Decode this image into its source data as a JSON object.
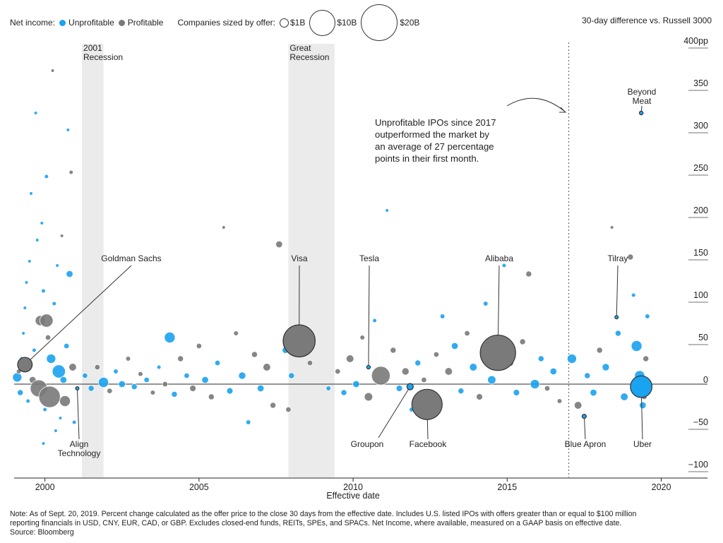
{
  "legend": {
    "net_income_label": "Net income:",
    "unprofitable_label": "Unprofitable",
    "profitable_label": "Profitable",
    "size_label": "Companies sized by offer:",
    "size_1b": "$1B",
    "size_10b": "$10B",
    "size_20b": "$20B",
    "right_title": "30-day difference vs. Russell 3000"
  },
  "callout": {
    "lines": [
      "Unprofitable IPOs since 2017",
      "outperformed the market by",
      "an average of 27 percentage",
      "points in their first month."
    ]
  },
  "notes": {
    "line1": "Note: As of Sept. 20, 2019. Percent change calculated as the offer price to the close 30 days from the effective date. Includes U.S. listed IPOs with offers greater than or equal to $100 million",
    "line2": "reporting financials in USD, CNY, EUR, CAD, or GBP. Excludes closed-end funds, REITs, SPEs, and SPACs. Net Income, where available, measured on a GAAP basis on effective date.",
    "line3": "Source: Bloomberg"
  },
  "chart_data": {
    "type": "scatter",
    "xlabel": "Effective date",
    "ylabel": "30-day difference vs. Russell 3000",
    "xlim": [
      1999.0,
      2021.5
    ],
    "ylim": [
      -110,
      410
    ],
    "x_ticks": [
      2000,
      2005,
      2010,
      2015,
      2020
    ],
    "y_ticks": [
      400,
      350,
      300,
      250,
      200,
      150,
      100,
      50,
      0,
      -50,
      -100
    ],
    "y_tick_labels": [
      "400pp",
      "350",
      "300",
      "250",
      "200",
      "150",
      "100",
      "50",
      "0",
      "−50",
      "−100"
    ],
    "recessions": [
      {
        "label": [
          "2001",
          "Recession"
        ],
        "start": 2001.2,
        "end": 2001.9
      },
      {
        "label": [
          "Great",
          "Recession"
        ],
        "start": 2007.9,
        "end": 2009.4
      }
    ],
    "reference_line_x": 2017.0,
    "colors": {
      "unprofitable": "#1aa3f0",
      "profitable": "#7a7a7a",
      "outline": "#333333",
      "recession": "#ebebeb",
      "zero_line": "#555555"
    },
    "size_scale_billion": {
      "1": 5.5,
      "10": 17,
      "20": 24
    },
    "labeled_points": [
      {
        "name": "Goldman Sachs",
        "x": 1999.35,
        "y": 23,
        "offer_billion": 3.7,
        "status": "profitable"
      },
      {
        "name": "Align Technology",
        "x": 2001.05,
        "y": -5,
        "offer_billion": 0.13,
        "status": "unprofitable"
      },
      {
        "name": "Visa",
        "x": 2008.25,
        "y": 51,
        "offer_billion": 17.9,
        "status": "profitable"
      },
      {
        "name": "Tesla",
        "x": 2010.5,
        "y": 20,
        "offer_billion": 0.23,
        "status": "unprofitable"
      },
      {
        "name": "Groupon",
        "x": 2011.85,
        "y": -3,
        "offer_billion": 0.7,
        "status": "unprofitable"
      },
      {
        "name": "Facebook",
        "x": 2012.4,
        "y": -24,
        "offer_billion": 16.0,
        "status": "profitable"
      },
      {
        "name": "Alibaba",
        "x": 2014.7,
        "y": 37,
        "offer_billion": 21.8,
        "status": "profitable"
      },
      {
        "name": "Blue Apron",
        "x": 2017.5,
        "y": -38,
        "offer_billion": 0.3,
        "status": "unprofitable"
      },
      {
        "name": "Tilray",
        "x": 2018.55,
        "y": 79,
        "offer_billion": 0.15,
        "status": "unprofitable"
      },
      {
        "name": "Beyond Meat",
        "x": 2019.35,
        "y": 320,
        "offer_billion": 0.24,
        "status": "unprofitable"
      },
      {
        "name": "Uber",
        "x": 2019.35,
        "y": -3,
        "offer_billion": 8.1,
        "status": "unprofitable"
      }
    ],
    "points": [
      [
        1999.1,
        8,
        "u",
        1.5
      ],
      [
        1999.15,
        15,
        "p",
        0.4
      ],
      [
        1999.2,
        -10,
        "u",
        0.6
      ],
      [
        1999.25,
        30,
        "u",
        0.3
      ],
      [
        1999.3,
        60,
        "u",
        0.2
      ],
      [
        1999.35,
        90,
        "u",
        0.2
      ],
      [
        1999.4,
        120,
        "u",
        0.2
      ],
      [
        1999.45,
        -20,
        "u",
        0.3
      ],
      [
        1999.5,
        145,
        "u",
        0.2
      ],
      [
        1999.55,
        225,
        "u",
        0.2
      ],
      [
        1999.6,
        5,
        "p",
        0.8
      ],
      [
        1999.65,
        40,
        "u",
        0.3
      ],
      [
        1999.7,
        320,
        "u",
        0.2
      ],
      [
        1999.75,
        170,
        "u",
        0.2
      ],
      [
        1999.8,
        -5,
        "p",
        5.0
      ],
      [
        1999.85,
        75,
        "p",
        1.8
      ],
      [
        1999.9,
        190,
        "u",
        0.2
      ],
      [
        1999.95,
        110,
        "u",
        0.3
      ],
      [
        2000.0,
        -30,
        "u",
        0.3
      ],
      [
        2000.05,
        245,
        "u",
        0.3
      ],
      [
        2000.1,
        55,
        "p",
        0.5
      ],
      [
        2000.15,
        -15,
        "p",
        8.0
      ],
      [
        2000.2,
        30,
        "u",
        1.5
      ],
      [
        2000.25,
        370,
        "p",
        0.2
      ],
      [
        2000.3,
        95,
        "u",
        0.3
      ],
      [
        2000.35,
        -55,
        "u",
        0.2
      ],
      [
        2000.4,
        140,
        "u",
        0.2
      ],
      [
        2000.45,
        15,
        "u",
        3.0
      ],
      [
        2000.5,
        -40,
        "u",
        0.2
      ],
      [
        2000.55,
        175,
        "p",
        0.2
      ],
      [
        2000.6,
        5,
        "u",
        0.8
      ],
      [
        2000.65,
        -20,
        "p",
        2.0
      ],
      [
        2000.7,
        45,
        "u",
        0.5
      ],
      [
        2000.75,
        300,
        "u",
        0.2
      ],
      [
        2000.8,
        130,
        "u",
        0.8
      ],
      [
        2000.85,
        250,
        "p",
        0.3
      ],
      [
        2000.9,
        20,
        "p",
        1.0
      ],
      [
        2000.95,
        -45,
        "u",
        0.3
      ],
      [
        2000.05,
        75,
        "p",
        3.0
      ],
      [
        1999.95,
        -70,
        "u",
        0.2
      ],
      [
        2001.3,
        10,
        "u",
        0.5
      ],
      [
        2001.5,
        -5,
        "u",
        0.6
      ],
      [
        2001.7,
        20,
        "p",
        0.5
      ],
      [
        2001.9,
        2,
        "u",
        1.8
      ],
      [
        2002.1,
        -8,
        "p",
        0.5
      ],
      [
        2002.3,
        15,
        "u",
        0.4
      ],
      [
        2002.5,
        0,
        "u",
        0.8
      ],
      [
        2002.7,
        30,
        "p",
        0.4
      ],
      [
        2002.9,
        -3,
        "u",
        0.6
      ],
      [
        2003.1,
        12,
        "p",
        0.4
      ],
      [
        2003.3,
        5,
        "u",
        0.5
      ],
      [
        2003.5,
        -10,
        "p",
        0.4
      ],
      [
        2003.7,
        20,
        "u",
        0.3
      ],
      [
        2003.9,
        0,
        "p",
        0.5
      ],
      [
        2004.05,
        55,
        "u",
        2.0
      ],
      [
        2004.2,
        -12,
        "u",
        0.6
      ],
      [
        2004.4,
        30,
        "p",
        0.6
      ],
      [
        2004.6,
        10,
        "u",
        0.5
      ],
      [
        2004.8,
        -5,
        "p",
        0.7
      ],
      [
        2005.0,
        45,
        "p",
        0.5
      ],
      [
        2005.2,
        5,
        "u",
        0.8
      ],
      [
        2005.4,
        -15,
        "p",
        0.6
      ],
      [
        2005.6,
        25,
        "u",
        0.5
      ],
      [
        2005.8,
        185,
        "p",
        0.2
      ],
      [
        2006.0,
        -8,
        "u",
        0.7
      ],
      [
        2006.2,
        60,
        "p",
        0.4
      ],
      [
        2006.4,
        10,
        "u",
        0.9
      ],
      [
        2006.6,
        -45,
        "u",
        0.4
      ],
      [
        2006.8,
        35,
        "p",
        0.6
      ],
      [
        2007.0,
        -5,
        "u",
        0.8
      ],
      [
        2007.2,
        20,
        "p",
        1.0
      ],
      [
        2007.4,
        -25,
        "p",
        0.6
      ],
      [
        2007.6,
        165,
        "p",
        0.8
      ],
      [
        2007.8,
        40,
        "u",
        0.7
      ],
      [
        2007.9,
        -30,
        "p",
        0.5
      ],
      [
        2008.0,
        10,
        "u",
        0.6
      ],
      [
        2008.6,
        25,
        "p",
        0.5
      ],
      [
        2009.2,
        -5,
        "u",
        0.4
      ],
      [
        2009.5,
        15,
        "p",
        0.5
      ],
      [
        2009.7,
        -10,
        "u",
        0.6
      ],
      [
        2009.9,
        30,
        "p",
        1.0
      ],
      [
        2010.1,
        0,
        "u",
        0.8
      ],
      [
        2010.3,
        55,
        "p",
        0.4
      ],
      [
        2010.5,
        -15,
        "p",
        1.2
      ],
      [
        2010.7,
        75,
        "u",
        0.3
      ],
      [
        2010.9,
        10,
        "p",
        6.0
      ],
      [
        2011.1,
        205,
        "u",
        0.2
      ],
      [
        2011.3,
        40,
        "p",
        0.6
      ],
      [
        2011.5,
        -5,
        "u",
        0.7
      ],
      [
        2011.7,
        15,
        "p",
        0.9
      ],
      [
        2011.9,
        -30,
        "u",
        0.4
      ],
      [
        2012.1,
        25,
        "u",
        0.6
      ],
      [
        2012.3,
        5,
        "p",
        0.5
      ],
      [
        2012.5,
        -10,
        "u",
        0.5
      ],
      [
        2012.7,
        35,
        "p",
        0.5
      ],
      [
        2012.9,
        80,
        "u",
        0.4
      ],
      [
        2013.1,
        15,
        "p",
        1.0
      ],
      [
        2013.3,
        45,
        "u",
        0.8
      ],
      [
        2013.5,
        -8,
        "u",
        0.6
      ],
      [
        2013.7,
        60,
        "p",
        0.5
      ],
      [
        2013.9,
        20,
        "u",
        1.0
      ],
      [
        2014.1,
        -15,
        "p",
        0.7
      ],
      [
        2014.3,
        95,
        "u",
        0.4
      ],
      [
        2014.5,
        5,
        "u",
        1.2
      ],
      [
        2014.9,
        140,
        "u",
        0.3
      ],
      [
        2015.1,
        25,
        "p",
        0.8
      ],
      [
        2015.3,
        -10,
        "u",
        0.7
      ],
      [
        2015.5,
        50,
        "p",
        0.6
      ],
      [
        2015.7,
        130,
        "p",
        0.6
      ],
      [
        2015.9,
        0,
        "u",
        1.5
      ],
      [
        2016.1,
        30,
        "u",
        0.6
      ],
      [
        2016.3,
        -5,
        "p",
        0.5
      ],
      [
        2016.5,
        15,
        "u",
        0.8
      ],
      [
        2016.7,
        -20,
        "p",
        0.4
      ],
      [
        2017.1,
        30,
        "u",
        1.5
      ],
      [
        2017.3,
        -25,
        "p",
        1.0
      ],
      [
        2017.6,
        10,
        "u",
        0.6
      ],
      [
        2017.8,
        -10,
        "u",
        0.8
      ],
      [
        2018.0,
        40,
        "p",
        0.6
      ],
      [
        2018.2,
        20,
        "u",
        0.9
      ],
      [
        2018.4,
        185,
        "p",
        0.2
      ],
      [
        2018.6,
        60,
        "u",
        0.6
      ],
      [
        2018.8,
        -15,
        "u",
        1.0
      ],
      [
        2019.0,
        150,
        "p",
        0.6
      ],
      [
        2019.1,
        105,
        "u",
        0.3
      ],
      [
        2019.2,
        45,
        "u",
        2.0
      ],
      [
        2019.3,
        10,
        "u",
        1.8
      ],
      [
        2019.4,
        -25,
        "u",
        0.8
      ],
      [
        2019.5,
        30,
        "p",
        0.6
      ],
      [
        2019.55,
        80,
        "u",
        0.4
      ],
      [
        2019.45,
        -15,
        "p",
        0.5
      ]
    ]
  }
}
